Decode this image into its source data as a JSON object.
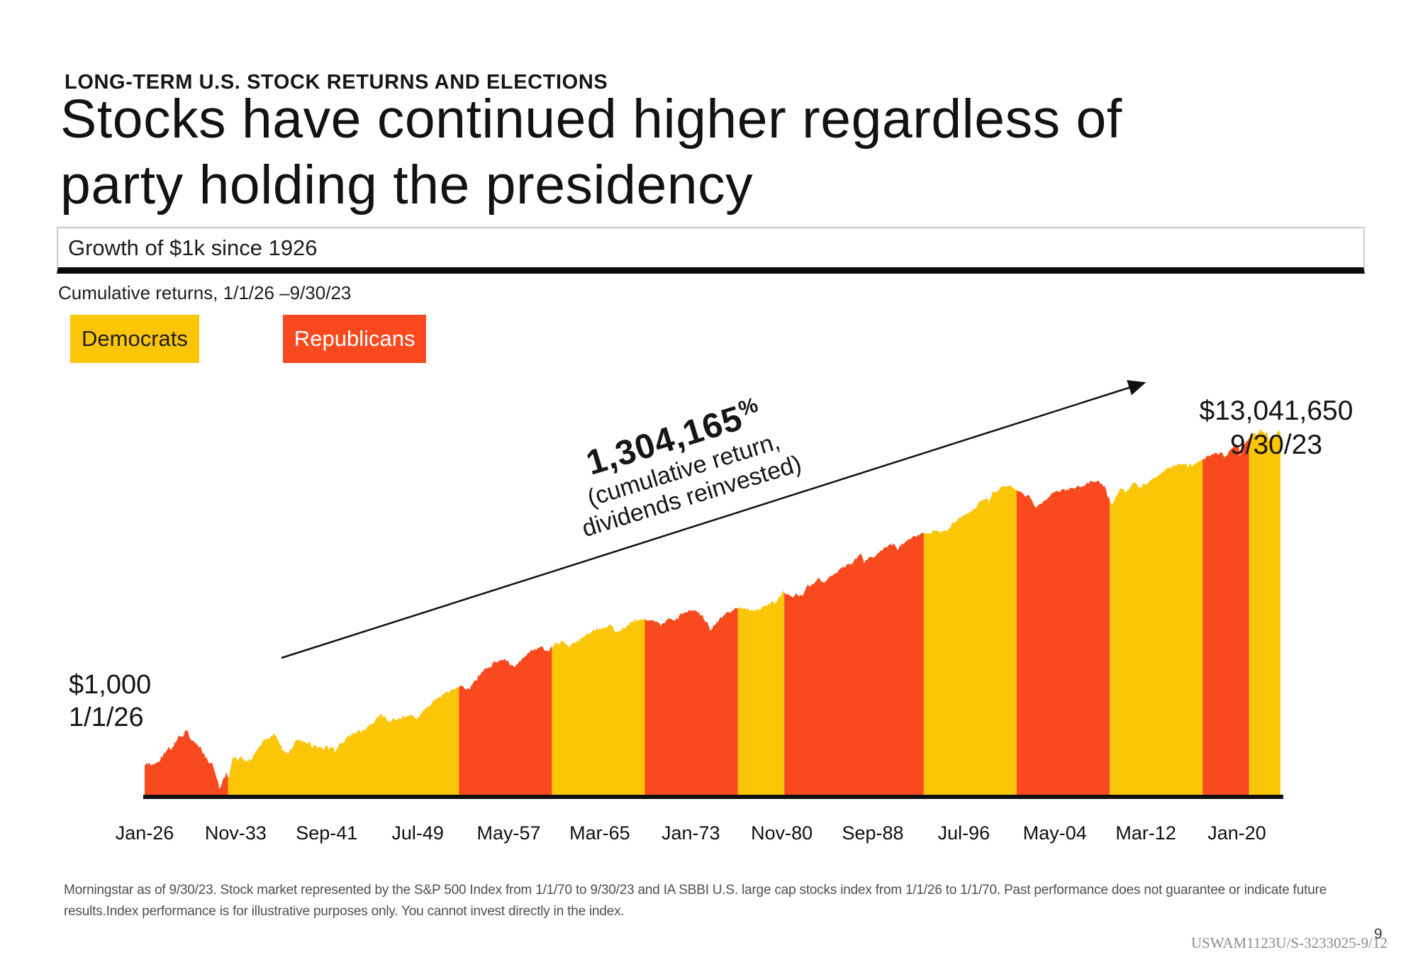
{
  "eyebrow": "LONG-TERM U.S. STOCK RETURNS AND ELECTIONS",
  "title": {
    "line1": "Stocks have continued higher regardless of",
    "line2": "party holding the presidency"
  },
  "header_bar": {
    "label": "Growth of $1k since 1926"
  },
  "subheading": "Cumulative returns, 1/1/26 –9/30/23",
  "legend": [
    {
      "label": "Democrats",
      "color": "#FBC608",
      "text_color": "#1f1f1f"
    },
    {
      "label": "Republicans",
      "color": "#F9491F",
      "text_color": "#ffffff"
    }
  ],
  "annotation": {
    "headline": "1,304,165",
    "headline_suffix": "%",
    "line2": "(cumulative return,",
    "line3": "dividends reinvested)"
  },
  "start_label": {
    "line1": "$1,000",
    "line2": "1/1/26"
  },
  "end_label": {
    "line1": "$13,041,650",
    "line2": "9/30/23"
  },
  "footnote": "Morningstar as of 9/30/23. Stock market represented by the S&P 500 Index from 1/1/70 to 9/30/23 and IA SBBI U.S. large cap stocks index from 1/1/26 to 1/1/70. Past performance does not guarantee or indicate future results.Index performance is for illustrative purposes only. You cannot invest directly in the index.",
  "footer": {
    "doc_id": "USWAM1123U/S-3233025-9/12",
    "page": "9"
  },
  "chart_data": {
    "type": "area",
    "title": "Growth of $1k since 1926",
    "y_scale": "log",
    "x_range": [
      1926.0,
      2023.75
    ],
    "start_value": 1000,
    "end_value": 13041650,
    "cumulative_return_pct": 1304165,
    "grid": false,
    "legend_position": "top-left",
    "x_ticks": [
      "Jan-26",
      "Nov-33",
      "Sep-41",
      "Jul-49",
      "May-57",
      "Mar-65",
      "Jan-73",
      "Nov-80",
      "Sep-88",
      "Jul-96",
      "May-04",
      "Mar-12",
      "Jan-20"
    ],
    "x_tick_times": [
      1926.0,
      1933.833,
      1941.667,
      1949.5,
      1957.333,
      1965.167,
      1973.0,
      1980.833,
      1988.667,
      1996.5,
      2004.333,
      2012.167,
      2020.0
    ],
    "colors": {
      "D": "#FBC608",
      "R": "#F9491F"
    },
    "segments": [
      {
        "party": "R",
        "start": 1926.0,
        "end": 1933.17
      },
      {
        "party": "D",
        "start": 1933.17,
        "end": 1953.05
      },
      {
        "party": "R",
        "start": 1953.05,
        "end": 1961.05
      },
      {
        "party": "D",
        "start": 1961.05,
        "end": 1969.05
      },
      {
        "party": "R",
        "start": 1969.05,
        "end": 1977.05
      },
      {
        "party": "D",
        "start": 1977.05,
        "end": 1981.05
      },
      {
        "party": "R",
        "start": 1981.05,
        "end": 1993.05
      },
      {
        "party": "D",
        "start": 1993.05,
        "end": 2001.05
      },
      {
        "party": "R",
        "start": 2001.05,
        "end": 2009.05
      },
      {
        "party": "D",
        "start": 2009.05,
        "end": 2017.05
      },
      {
        "party": "R",
        "start": 2017.05,
        "end": 2021.05
      },
      {
        "party": "D",
        "start": 2021.05,
        "end": 2023.75
      }
    ],
    "anchors": [
      [
        1926.0,
        1000
      ],
      [
        1927.0,
        1116
      ],
      [
        1928.0,
        1535
      ],
      [
        1929.0,
        2204
      ],
      [
        1929.7,
        2700
      ],
      [
        1930.0,
        2018
      ],
      [
        1930.5,
        1900
      ],
      [
        1931.0,
        1516
      ],
      [
        1932.0,
        859
      ],
      [
        1932.45,
        490
      ],
      [
        1933.0,
        789
      ],
      [
        1933.2,
        650
      ],
      [
        1933.6,
        1350
      ],
      [
        1934.0,
        1214
      ],
      [
        1935.0,
        1197
      ],
      [
        1936.0,
        1767
      ],
      [
        1937.0,
        2367
      ],
      [
        1937.2,
        2550
      ],
      [
        1938.0,
        1538
      ],
      [
        1938.3,
        1400
      ],
      [
        1939.0,
        2016
      ],
      [
        1940.0,
        2008
      ],
      [
        1940.45,
        1700
      ],
      [
        1941.0,
        1812
      ],
      [
        1942.0,
        1602
      ],
      [
        1942.35,
        1450
      ],
      [
        1943.0,
        1927
      ],
      [
        1944.0,
        2427
      ],
      [
        1945.0,
        2906
      ],
      [
        1946.0,
        3965
      ],
      [
        1946.4,
        4250
      ],
      [
        1947.0,
        3645
      ],
      [
        1948.0,
        3853
      ],
      [
        1949.0,
        4065
      ],
      [
        1949.5,
        3900
      ],
      [
        1950.0,
        4829
      ],
      [
        1951.0,
        6360
      ],
      [
        1952.0,
        7888
      ],
      [
        1953.0,
        9336
      ],
      [
        1953.7,
        8900
      ],
      [
        1954.0,
        9244
      ],
      [
        1955.0,
        14108
      ],
      [
        1956.0,
        18561
      ],
      [
        1956.6,
        19900
      ],
      [
        1957.0,
        19778
      ],
      [
        1957.8,
        16800
      ],
      [
        1958.0,
        17646
      ],
      [
        1959.0,
        25298
      ],
      [
        1960.0,
        28322
      ],
      [
        1960.8,
        26500
      ],
      [
        1961.0,
        28455
      ],
      [
        1962.0,
        36106
      ],
      [
        1962.5,
        29500
      ],
      [
        1963.0,
        32955
      ],
      [
        1964.0,
        40469
      ],
      [
        1965.0,
        47139
      ],
      [
        1966.0,
        53008
      ],
      [
        1966.75,
        44500
      ],
      [
        1967.0,
        47674
      ],
      [
        1968.0,
        59104
      ],
      [
        1968.92,
        66500
      ],
      [
        1969.0,
        65642
      ],
      [
        1969.55,
        59000
      ],
      [
        1970.0,
        60059
      ],
      [
        1970.45,
        52500
      ],
      [
        1971.0,
        62465
      ],
      [
        1971.9,
        68000
      ],
      [
        1972.0,
        71406
      ],
      [
        1973.0,
        84956
      ],
      [
        1973.5,
        77000
      ],
      [
        1974.0,
        72500
      ],
      [
        1974.75,
        46500
      ],
      [
        1975.0,
        53311
      ],
      [
        1975.55,
        65000
      ],
      [
        1976.0,
        73144
      ],
      [
        1977.0,
        90584
      ],
      [
        1978.0,
        84077
      ],
      [
        1978.2,
        80500
      ],
      [
        1979.0,
        89592
      ],
      [
        1980.0,
        106112
      ],
      [
        1980.27,
        97500
      ],
      [
        1981.0,
        140513
      ],
      [
        1981.75,
        125000
      ],
      [
        1982.0,
        133615
      ],
      [
        1982.6,
        121000
      ],
      [
        1983.0,
        162221
      ],
      [
        1984.0,
        198745
      ],
      [
        1984.55,
        187000
      ],
      [
        1985.0,
        211199
      ],
      [
        1986.0,
        278172
      ],
      [
        1987.0,
        330168
      ],
      [
        1987.65,
        432000
      ],
      [
        1987.92,
        320000
      ],
      [
        1988.0,
        347967
      ],
      [
        1989.0,
        405558
      ],
      [
        1990.0,
        533640
      ],
      [
        1990.55,
        560000
      ],
      [
        1990.8,
        462000
      ],
      [
        1991.0,
        517049
      ],
      [
        1992.0,
        674610
      ],
      [
        1993.0,
        726412
      ],
      [
        1994.0,
        799547
      ],
      [
        1994.3,
        770000
      ],
      [
        1995.0,
        810083
      ],
      [
        1996.0,
        1113918
      ],
      [
        1997.0,
        1370949
      ],
      [
        1998.0,
        1828326
      ],
      [
        1998.55,
        2100000
      ],
      [
        1998.67,
        1750000
      ],
      [
        1999.0,
        2350892
      ],
      [
        2000.0,
        2845630
      ],
      [
        2000.2,
        2980000
      ],
      [
        2000.7,
        2820000
      ],
      [
        2001.0,
        2586524
      ],
      [
        2001.7,
        2250000
      ],
      [
        2001.75,
        2050000
      ],
      [
        2002.0,
        2279128
      ],
      [
        2002.75,
        1560000
      ],
      [
        2003.0,
        1775340
      ],
      [
        2003.2,
        1690000
      ],
      [
        2004.0,
        2284790
      ],
      [
        2005.0,
        2533180
      ],
      [
        2006.0,
        2657560
      ],
      [
        2007.0,
        3077330
      ],
      [
        2007.8,
        3420000
      ],
      [
        2008.0,
        3246390
      ],
      [
        2008.7,
        2750000
      ],
      [
        2008.9,
        1950000
      ],
      [
        2009.0,
        2045350
      ],
      [
        2009.2,
        1630000
      ],
      [
        2010.0,
        2586500
      ],
      [
        2010.5,
        2430000
      ],
      [
        2011.0,
        2976070
      ],
      [
        2011.35,
        3120000
      ],
      [
        2011.75,
        2620000
      ],
      [
        2012.0,
        3038810
      ],
      [
        2013.0,
        3525250
      ],
      [
        2014.0,
        4666660
      ],
      [
        2015.0,
        5305870
      ],
      [
        2015.65,
        5560000
      ],
      [
        2015.72,
        4900000
      ],
      [
        2016.0,
        5379290
      ],
      [
        2016.12,
        5050000
      ],
      [
        2017.0,
        6022660
      ],
      [
        2018.0,
        7337810
      ],
      [
        2018.1,
        7750000
      ],
      [
        2018.3,
        7150000
      ],
      [
        2018.75,
        7800000
      ],
      [
        2018.97,
        6450000
      ],
      [
        2019.0,
        7016020
      ],
      [
        2020.0,
        9224950
      ],
      [
        2020.15,
        9500000
      ],
      [
        2020.23,
        6750000
      ],
      [
        2020.65,
        9400000
      ],
      [
        2021.0,
        10921100
      ],
      [
        2021.85,
        13300000
      ],
      [
        2022.0,
        14054430
      ],
      [
        2022.45,
        12100000
      ],
      [
        2022.6,
        12900000
      ],
      [
        2022.75,
        10450000
      ],
      [
        2023.0,
        11508500
      ],
      [
        2023.1,
        11900000
      ],
      [
        2023.35,
        11700000
      ],
      [
        2023.55,
        13600000
      ],
      [
        2023.6,
        13500000
      ],
      [
        2023.75,
        13041650
      ]
    ]
  }
}
